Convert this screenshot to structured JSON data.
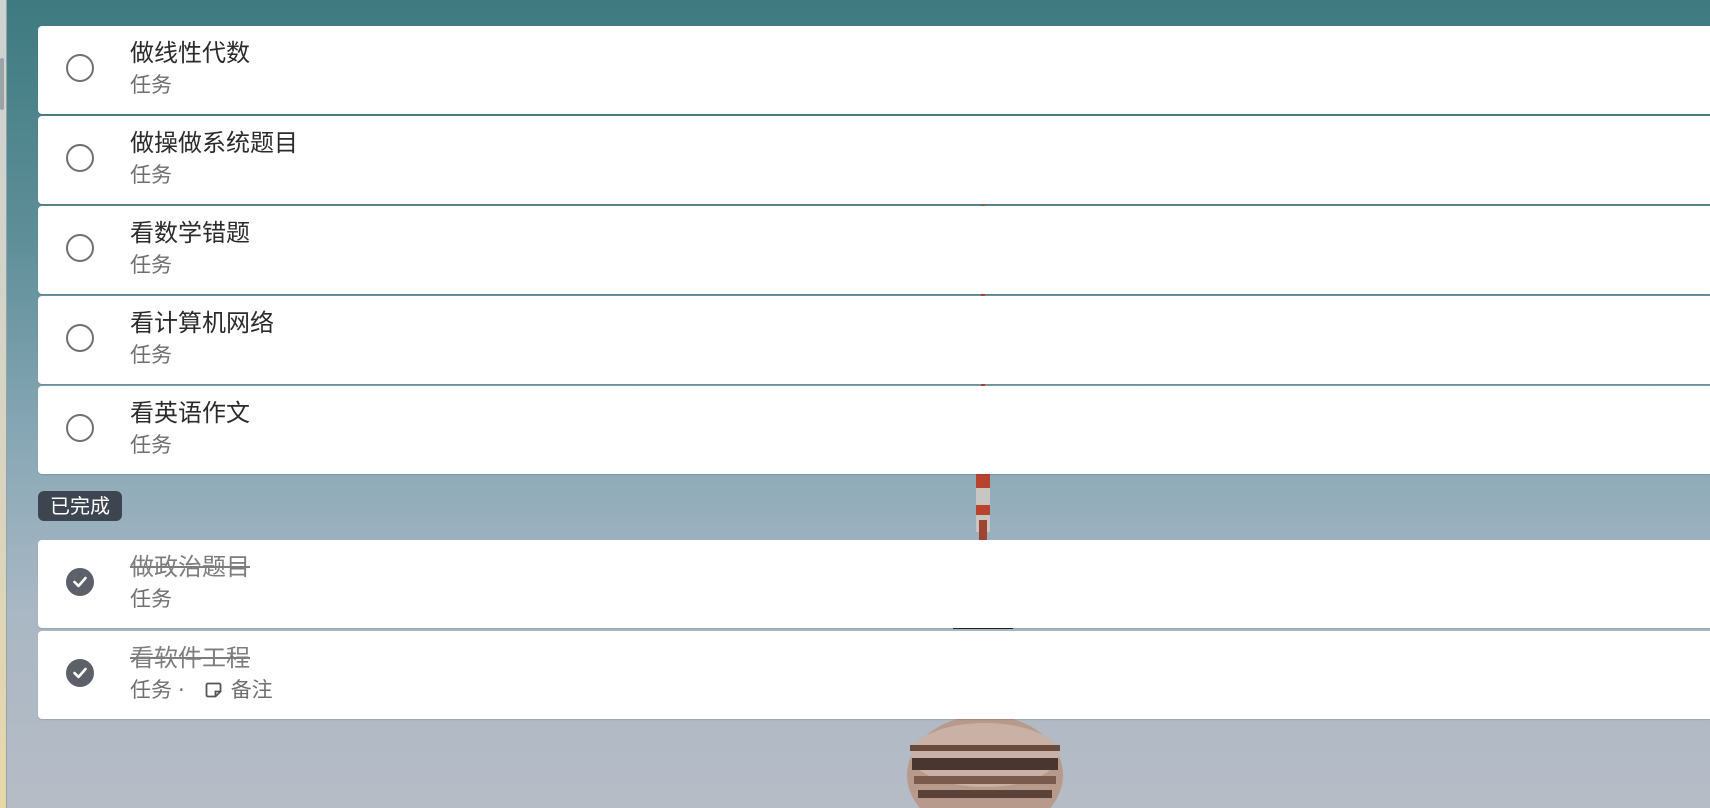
{
  "pending_tasks": [
    {
      "title": "做线性代数",
      "category": "任务"
    },
    {
      "title": "做操做系统题目",
      "category": "任务"
    },
    {
      "title": "看数学错题",
      "category": "任务"
    },
    {
      "title": "看计算机网络",
      "category": "任务"
    },
    {
      "title": "看英语作文",
      "category": "任务"
    }
  ],
  "completed_section": {
    "label": "已完成",
    "tasks": [
      {
        "title": "做政治题目",
        "category": "任务"
      },
      {
        "title": "看软件工程",
        "category": "任务",
        "separator": "·",
        "note_icon": "note-icon",
        "note_label": "备注"
      }
    ]
  },
  "colors": {
    "card": "#ffffff",
    "badge": "#3d4650",
    "done_check": "#5b6069",
    "pending_check_border": "#6f6f6f"
  }
}
